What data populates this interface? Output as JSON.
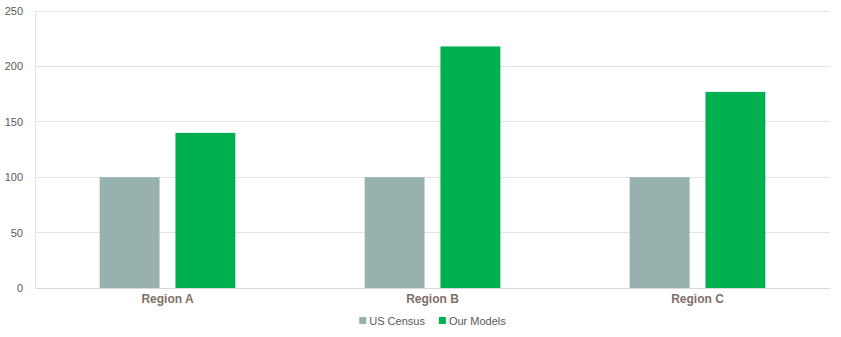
{
  "chart_data": {
    "type": "bar",
    "categories": [
      "Region A",
      "Region B",
      "Region C"
    ],
    "series": [
      {
        "name": "US Census",
        "color": "#97b1ae",
        "values": [
          100,
          100,
          100
        ]
      },
      {
        "name": "Our Models",
        "color": "#00b050",
        "values": [
          140,
          218,
          177
        ]
      }
    ],
    "ylim": [
      0,
      250
    ],
    "yticks": [
      0,
      50,
      100,
      150,
      200,
      250
    ],
    "grid": true,
    "legend": "bottom"
  }
}
